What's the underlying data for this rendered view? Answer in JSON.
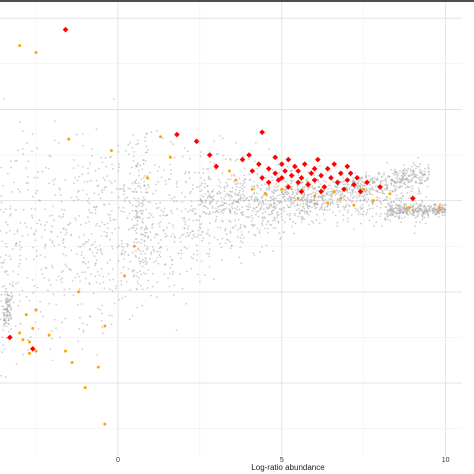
{
  "chart_data": {
    "type": "scatter",
    "title": "",
    "xlabel": "Log-ratio abundance",
    "ylabel": "",
    "x_ticks": [
      0,
      5,
      10
    ],
    "x_tick_labels": [
      "0",
      "5",
      "10"
    ],
    "xlim": [
      -3.6,
      10.5
    ],
    "ylim": [
      -11.2,
      8.8
    ],
    "grid": true,
    "legend": "none",
    "series": [
      {
        "color": "#ff0000",
        "marker": "diamond",
        "points": [
          [
            -1.6,
            7.5
          ],
          [
            1.8,
            2.9
          ],
          [
            2.4,
            2.6
          ],
          [
            2.8,
            2.0
          ],
          [
            3.0,
            1.5
          ],
          [
            4.4,
            3.0
          ],
          [
            3.8,
            1.8
          ],
          [
            4.0,
            2.0
          ],
          [
            4.1,
            1.3
          ],
          [
            4.3,
            1.6
          ],
          [
            4.4,
            1.0
          ],
          [
            4.6,
            1.4
          ],
          [
            4.6,
            0.8
          ],
          [
            4.8,
            1.9
          ],
          [
            4.8,
            1.2
          ],
          [
            4.9,
            0.9
          ],
          [
            5.0,
            1.6
          ],
          [
            5.0,
            1.0
          ],
          [
            5.1,
            1.3
          ],
          [
            5.2,
            0.6
          ],
          [
            5.2,
            1.8
          ],
          [
            5.3,
            1.1
          ],
          [
            5.4,
            1.5
          ],
          [
            5.5,
            0.8
          ],
          [
            5.5,
            1.3
          ],
          [
            5.6,
            1.0
          ],
          [
            5.7,
            1.6
          ],
          [
            5.8,
            0.7
          ],
          [
            5.9,
            1.2
          ],
          [
            6.0,
            1.4
          ],
          [
            6.0,
            0.9
          ],
          [
            6.1,
            1.8
          ],
          [
            6.2,
            1.1
          ],
          [
            6.3,
            0.6
          ],
          [
            6.4,
            1.4
          ],
          [
            6.5,
            1.0
          ],
          [
            6.6,
            1.6
          ],
          [
            6.7,
            0.8
          ],
          [
            6.8,
            1.2
          ],
          [
            6.9,
            0.5
          ],
          [
            7.0,
            1.5
          ],
          [
            7.0,
            0.9
          ],
          [
            7.1,
            1.2
          ],
          [
            7.2,
            0.7
          ],
          [
            7.3,
            1.0
          ],
          [
            7.4,
            0.4
          ],
          [
            7.6,
            0.8
          ],
          [
            8.0,
            0.6
          ],
          [
            6.2,
            0.4
          ],
          [
            5.6,
            0.4
          ],
          [
            9.0,
            0.1
          ],
          [
            -3.3,
            -6.0
          ],
          [
            -2.6,
            -6.5
          ]
        ]
      },
      {
        "color": "#ffa500",
        "marker": "circle",
        "points": [
          [
            -2.5,
            6.5
          ],
          [
            -3.0,
            6.8
          ],
          [
            -1.5,
            2.7
          ],
          [
            -0.2,
            2.2
          ],
          [
            1.3,
            2.8
          ],
          [
            1.6,
            1.9
          ],
          [
            3.4,
            1.3
          ],
          [
            3.6,
            0.9
          ],
          [
            4.1,
            0.5
          ],
          [
            4.5,
            0.3
          ],
          [
            5.0,
            0.5
          ],
          [
            5.5,
            0.1
          ],
          [
            6.0,
            0.2
          ],
          [
            6.4,
            -0.1
          ],
          [
            6.8,
            0.1
          ],
          [
            7.2,
            -0.2
          ],
          [
            7.8,
            0.0
          ],
          [
            8.3,
            0.3
          ],
          [
            8.9,
            -0.3
          ],
          [
            9.8,
            -0.3
          ],
          [
            5.8,
            0.8
          ],
          [
            6.6,
            0.4
          ],
          [
            7.5,
            0.5
          ],
          [
            0.9,
            1.0
          ],
          [
            0.2,
            -3.3
          ],
          [
            -0.4,
            -5.5
          ],
          [
            -1.2,
            -4.0
          ],
          [
            -2.5,
            -4.8
          ],
          [
            -2.8,
            -5.0
          ],
          [
            -2.6,
            -5.6
          ],
          [
            -2.9,
            -6.1
          ],
          [
            -2.7,
            -6.2
          ],
          [
            -3.0,
            -5.8
          ],
          [
            -2.5,
            -6.6
          ],
          [
            -2.7,
            -6.7
          ],
          [
            -1.6,
            -6.6
          ],
          [
            -1.4,
            -7.1
          ],
          [
            -0.6,
            -7.3
          ],
          [
            -1.0,
            -8.2
          ],
          [
            -0.4,
            -9.8
          ],
          [
            -2.1,
            -5.9
          ],
          [
            0.5,
            -2.0
          ]
        ]
      }
    ]
  }
}
